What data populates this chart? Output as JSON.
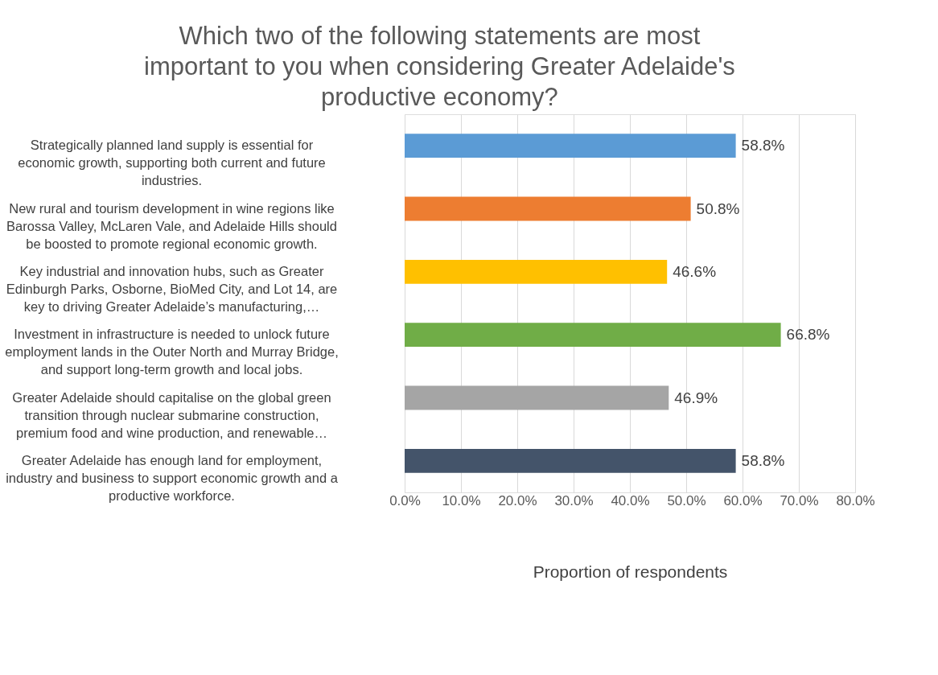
{
  "chart_data": {
    "type": "bar",
    "orientation": "horizontal",
    "title": "Which two of the following statements are most important to you  when considering Greater Adelaide's productive economy?",
    "xlabel": "Proportion of respondents",
    "categories": [
      "Strategically planned land supply is essential for economic growth, supporting both current and future industries.",
      "New rural and tourism development in wine regions like Barossa Valley, McLaren Vale, and Adelaide Hills should be boosted to promote regional economic growth.",
      "Key industrial and innovation hubs, such as Greater Edinburgh Parks, Osborne, BioMed City, and Lot 14, are key to driving Greater Adelaide’s manufacturing,…",
      "Investment in infrastructure is needed to unlock future employment lands in the Outer North and Murray Bridge, and support long-term growth and local jobs.",
      "Greater Adelaide should capitalise on the global green transition through nuclear submarine construction, premium food and wine production, and renewable…",
      "Greater Adelaide has enough land for employment, industry and business to support economic growth and a productive workforce."
    ],
    "values": [
      58.8,
      50.8,
      46.6,
      66.8,
      46.9,
      58.8
    ],
    "value_labels": [
      "58.8%",
      "50.8%",
      "46.6%",
      "66.8%",
      "46.9%",
      "58.8%"
    ],
    "colors": [
      "#5b9bd5",
      "#ed7d31",
      "#ffc000",
      "#70ad47",
      "#a5a5a5",
      "#44546a"
    ],
    "xlim": [
      0,
      80
    ],
    "xticks": [
      {
        "value": 0,
        "label": "0.0%"
      },
      {
        "value": 10,
        "label": "10.0%"
      },
      {
        "value": 20,
        "label": "20.0%"
      },
      {
        "value": 30,
        "label": "30.0%"
      },
      {
        "value": 40,
        "label": "40.0%"
      },
      {
        "value": 50,
        "label": "50.0%"
      },
      {
        "value": 60,
        "label": "60.0%"
      },
      {
        "value": 70,
        "label": "70.0%"
      },
      {
        "value": 80,
        "label": "80.0%"
      }
    ],
    "grid": "x"
  }
}
